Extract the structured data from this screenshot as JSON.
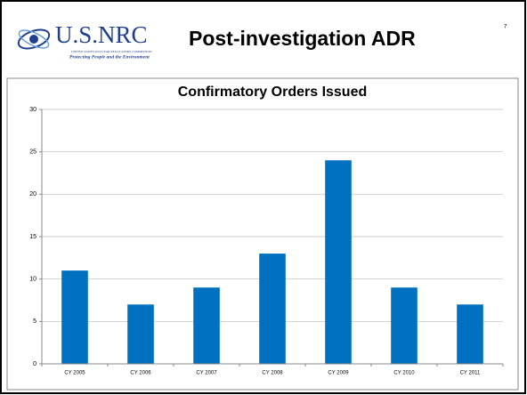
{
  "slide": {
    "logo_text": "U.S.NRC",
    "logo_subtext": "UNITED STATES NUCLEAR REGULATORY COMMISSION",
    "tagline": "Protecting People and the Environment",
    "title": "Post-investigation ADR",
    "page_number": "7"
  },
  "chart_data": {
    "type": "bar",
    "title": "Confirmatory Orders Issued",
    "categories": [
      "CY 2005",
      "CY 2006",
      "CY 2007",
      "CY 2008",
      "CY 2009",
      "CY 2010",
      "CY 2011"
    ],
    "values": [
      11,
      7,
      9,
      13,
      24,
      9,
      7
    ],
    "color": "#0070c0",
    "ylim": [
      0,
      30
    ],
    "yticks": [
      0,
      5,
      10,
      15,
      20,
      25,
      30
    ],
    "grid": true
  }
}
